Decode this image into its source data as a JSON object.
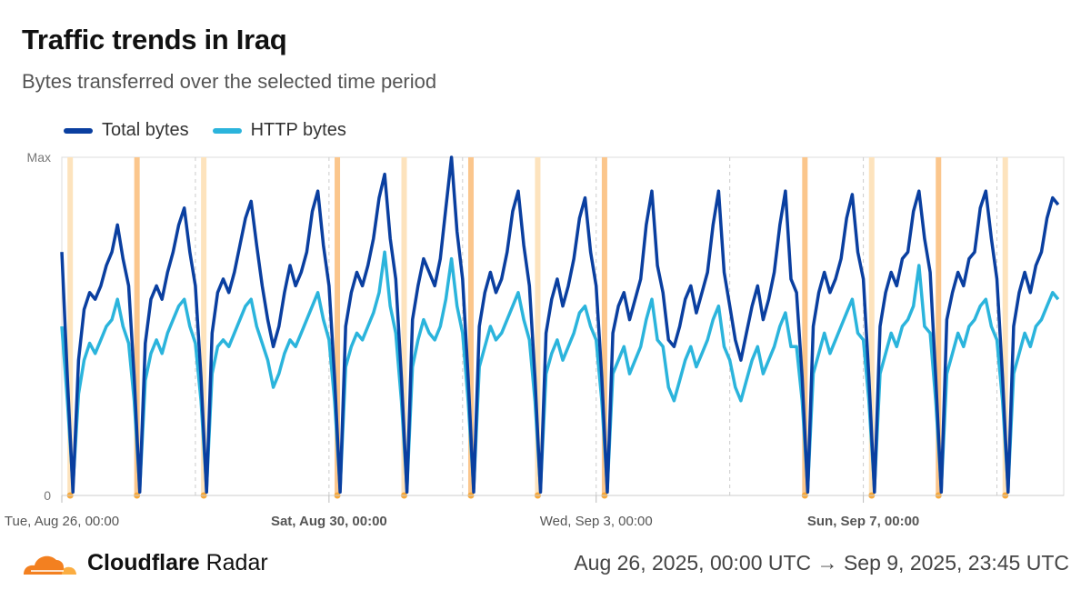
{
  "header": {
    "title": "Traffic trends in Iraq",
    "subtitle": "Bytes transferred over the selected time period"
  },
  "footer": {
    "brand_bold": "Cloudflare",
    "brand_light": "Radar",
    "range": "Aug 26, 2025, 00:00 UTC → Sep 9, 2025, 23:45 UTC"
  },
  "colors": {
    "total": "#0a3fa0",
    "http": "#2bb4dc",
    "outage_light": "#fde3bd",
    "outage_dark": "#fbc68c",
    "outage_dot": "#f8a93a"
  },
  "chart_data": {
    "type": "line",
    "title": "Traffic trends in Iraq",
    "subtitle": "Bytes transferred over the selected time period",
    "legend_position": "top-left",
    "x_start": "2025-08-26T00:00Z",
    "x_end": "2025-09-09T23:45Z",
    "x_interval_hours": 2,
    "ylim": [
      0,
      100
    ],
    "y_ticks": [
      {
        "value": 0,
        "label": "0"
      },
      {
        "value": 100,
        "label": "Max"
      }
    ],
    "x_ticks": [
      {
        "date": "2025-08-26T00:00Z",
        "label": "Tue, Aug 26, 00:00",
        "bold": false
      },
      {
        "date": "2025-08-30T00:00Z",
        "label": "Sat, Aug 30, 00:00",
        "bold": true
      },
      {
        "date": "2025-09-03T00:00Z",
        "label": "Wed, Sep 3, 00:00",
        "bold": false
      },
      {
        "date": "2025-09-07T00:00Z",
        "label": "Sun, Sep 7, 00:00",
        "bold": true
      }
    ],
    "gridlines": [
      "2025-08-28",
      "2025-08-30",
      "2025-09-01",
      "2025-09-03",
      "2025-09-05",
      "2025-09-07",
      "2025-09-09"
    ],
    "outages": [
      {
        "date": "2025-08-26T03:00Z",
        "shade": "light"
      },
      {
        "date": "2025-08-27T03:00Z",
        "shade": "dark"
      },
      {
        "date": "2025-08-28T03:00Z",
        "shade": "light"
      },
      {
        "date": "2025-08-30T03:00Z",
        "shade": "dark"
      },
      {
        "date": "2025-08-31T03:00Z",
        "shade": "light"
      },
      {
        "date": "2025-09-01T03:00Z",
        "shade": "dark"
      },
      {
        "date": "2025-09-02T03:00Z",
        "shade": "light"
      },
      {
        "date": "2025-09-03T03:00Z",
        "shade": "dark"
      },
      {
        "date": "2025-09-06T03:00Z",
        "shade": "dark"
      },
      {
        "date": "2025-09-07T03:00Z",
        "shade": "light"
      },
      {
        "date": "2025-09-08T03:00Z",
        "shade": "dark"
      },
      {
        "date": "2025-09-09T03:00Z",
        "shade": "light"
      }
    ],
    "series": [
      {
        "name": "Total bytes",
        "values": [
          72,
          35,
          1,
          40,
          55,
          60,
          58,
          62,
          68,
          72,
          80,
          70,
          62,
          35,
          1,
          45,
          58,
          62,
          58,
          66,
          72,
          80,
          85,
          72,
          62,
          35,
          1,
          48,
          60,
          64,
          60,
          66,
          74,
          82,
          87,
          74,
          62,
          52,
          44,
          50,
          60,
          68,
          62,
          66,
          72,
          84,
          90,
          74,
          62,
          35,
          1,
          50,
          60,
          66,
          62,
          68,
          76,
          88,
          95,
          76,
          64,
          35,
          1,
          52,
          62,
          70,
          66,
          62,
          70,
          85,
          100,
          78,
          64,
          35,
          1,
          50,
          60,
          66,
          60,
          64,
          72,
          84,
          90,
          74,
          62,
          35,
          1,
          48,
          58,
          64,
          56,
          62,
          70,
          82,
          88,
          72,
          62,
          35,
          1,
          48,
          56,
          60,
          52,
          58,
          64,
          80,
          90,
          68,
          60,
          46,
          44,
          50,
          58,
          62,
          54,
          60,
          66,
          80,
          90,
          66,
          56,
          46,
          40,
          48,
          56,
          62,
          52,
          58,
          66,
          80,
          90,
          64,
          60,
          35,
          1,
          50,
          60,
          66,
          60,
          64,
          70,
          82,
          89,
          72,
          64,
          35,
          1,
          50,
          60,
          66,
          62,
          70,
          72,
          84,
          90,
          76,
          66,
          35,
          1,
          52,
          60,
          66,
          62,
          70,
          72,
          85,
          90,
          76,
          64,
          35,
          1,
          50,
          60,
          66,
          60,
          68,
          72,
          82,
          88,
          86
        ]
      },
      {
        "name": "HTTP bytes",
        "values": [
          50,
          28,
          3,
          30,
          40,
          45,
          42,
          46,
          50,
          52,
          58,
          50,
          45,
          28,
          2,
          34,
          42,
          46,
          42,
          48,
          52,
          56,
          58,
          50,
          45,
          28,
          2,
          36,
          44,
          46,
          44,
          48,
          52,
          56,
          58,
          50,
          45,
          40,
          32,
          36,
          42,
          46,
          44,
          48,
          52,
          56,
          60,
          52,
          46,
          28,
          2,
          38,
          44,
          48,
          46,
          50,
          54,
          60,
          72,
          56,
          48,
          28,
          2,
          38,
          46,
          52,
          48,
          46,
          50,
          58,
          70,
          56,
          48,
          28,
          2,
          38,
          44,
          50,
          46,
          48,
          52,
          56,
          60,
          52,
          46,
          28,
          2,
          36,
          42,
          46,
          40,
          44,
          48,
          54,
          56,
          50,
          46,
          28,
          2,
          36,
          40,
          44,
          36,
          40,
          44,
          52,
          58,
          46,
          44,
          32,
          28,
          34,
          40,
          44,
          38,
          42,
          46,
          52,
          56,
          44,
          40,
          32,
          28,
          34,
          40,
          44,
          36,
          40,
          44,
          50,
          54,
          44,
          44,
          28,
          2,
          36,
          42,
          48,
          42,
          46,
          50,
          54,
          58,
          48,
          46,
          28,
          2,
          36,
          42,
          48,
          44,
          50,
          52,
          56,
          68,
          50,
          48,
          28,
          2,
          36,
          42,
          48,
          44,
          50,
          52,
          56,
          58,
          50,
          46,
          28,
          2,
          36,
          42,
          48,
          44,
          50,
          52,
          56,
          60,
          58
        ]
      }
    ]
  }
}
